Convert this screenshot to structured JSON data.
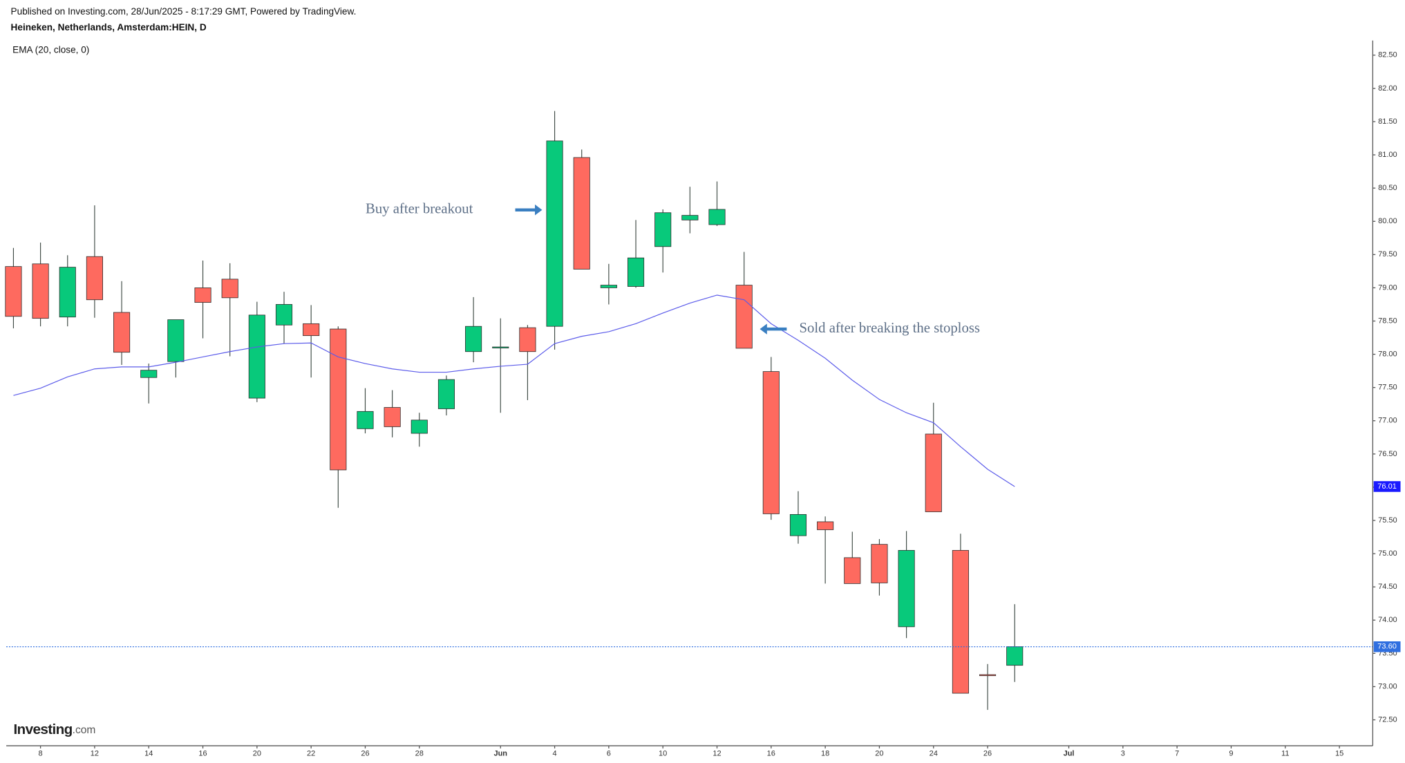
{
  "chart_data": {
    "type": "candlestick",
    "subtitle": "Published on Investing.com, 28/Jun/2025 - 8:17:29 GMT, Powered by TradingView.",
    "title": "Heineken, Netherlands, Amsterdam:HEIN, D",
    "logo": {
      "text": "Investing",
      "suffix": ".com"
    },
    "categories": [
      null,
      "8",
      null,
      "12",
      null,
      "14",
      null,
      "16",
      null,
      "20",
      null,
      "22",
      null,
      "26",
      null,
      "28",
      null,
      null,
      "Jun",
      null,
      "4",
      null,
      "6",
      null,
      "10",
      null,
      "12",
      null,
      "16",
      null,
      "18",
      null,
      "20",
      null,
      "24",
      null,
      "26",
      null,
      null,
      "Jul",
      null,
      "3",
      null,
      "7",
      null,
      "9",
      null,
      "11",
      null,
      "15"
    ],
    "open": [
      79.32,
      79.36,
      78.56,
      79.47,
      78.63,
      77.65,
      77.89,
      79.0,
      79.13,
      77.34,
      78.44,
      78.46,
      78.38,
      76.88,
      77.2,
      76.81,
      77.18,
      78.04,
      78.1,
      78.4,
      78.42,
      80.96,
      79.0,
      79.02,
      79.62,
      80.02,
      79.95,
      79.04,
      77.74,
      75.27,
      75.48,
      74.94,
      75.14,
      73.9,
      76.8,
      75.05,
      73.18,
      73.32,
      null,
      null,
      null,
      null,
      null,
      null,
      null,
      null,
      null,
      null,
      null,
      null
    ],
    "high": [
      79.6,
      79.68,
      79.49,
      80.24,
      79.1,
      77.86,
      78.52,
      79.41,
      79.37,
      78.79,
      78.94,
      78.74,
      78.42,
      77.49,
      77.46,
      77.12,
      77.68,
      78.86,
      78.54,
      78.44,
      81.66,
      81.08,
      79.36,
      80.02,
      80.18,
      80.52,
      80.6,
      79.54,
      77.96,
      75.94,
      75.56,
      75.33,
      75.22,
      75.34,
      77.27,
      75.3,
      73.34,
      74.24,
      null,
      null,
      null,
      null,
      null,
      null,
      null,
      null,
      null,
      null,
      null,
      null
    ],
    "low": [
      78.39,
      78.42,
      78.42,
      78.55,
      77.84,
      77.26,
      77.65,
      78.24,
      77.97,
      77.28,
      78.16,
      77.65,
      75.69,
      76.81,
      76.75,
      76.61,
      77.08,
      77.88,
      77.12,
      77.31,
      78.07,
      79.28,
      78.75,
      79.0,
      79.23,
      79.82,
      79.93,
      78.09,
      75.51,
      75.15,
      74.55,
      74.55,
      74.37,
      73.73,
      75.63,
      72.9,
      72.65,
      73.07,
      null,
      null,
      null,
      null,
      null,
      null,
      null,
      null,
      null,
      null,
      null,
      null
    ],
    "close": [
      78.57,
      78.54,
      79.31,
      78.82,
      78.03,
      77.76,
      78.52,
      78.78,
      78.85,
      78.59,
      78.75,
      78.28,
      76.26,
      77.14,
      76.91,
      77.01,
      77.62,
      78.42,
      78.11,
      78.04,
      81.21,
      79.28,
      79.04,
      79.45,
      80.13,
      80.09,
      80.18,
      78.09,
      75.6,
      75.59,
      75.36,
      74.55,
      74.56,
      75.05,
      75.63,
      72.9,
      73.17,
      73.6,
      null,
      null,
      null,
      null,
      null,
      null,
      null,
      null,
      null,
      null,
      null,
      null
    ],
    "up_color": "#08c97b",
    "down_color": "#fe6a5f",
    "series": [
      {
        "name": "EMA (20, close, 0)",
        "color": "#5b5bea",
        "values": [
          77.38,
          77.49,
          77.66,
          77.78,
          77.81,
          77.81,
          77.88,
          77.96,
          78.04,
          78.11,
          78.16,
          78.17,
          77.96,
          77.86,
          77.78,
          77.73,
          77.73,
          77.78,
          77.82,
          77.85,
          78.16,
          78.27,
          78.34,
          78.46,
          78.62,
          78.77,
          78.89,
          78.82,
          78.46,
          78.21,
          77.94,
          77.61,
          77.32,
          77.12,
          76.97,
          76.61,
          76.27,
          76.01,
          null,
          null,
          null,
          null,
          null,
          null,
          null,
          null,
          null,
          null,
          null,
          null
        ]
      }
    ],
    "price_tags": [
      {
        "value": 76.01,
        "label": "76.01",
        "color": "#1a1aff",
        "line": false
      },
      {
        "value": 73.6,
        "label": "73.60",
        "color": "#2f6fe0",
        "line": true
      }
    ],
    "annotations": [
      {
        "text": "Buy after breakout"
      },
      {
        "text": "Sold after breaking the stoploss"
      }
    ],
    "ylim": [
      72.11,
      82.72
    ],
    "yticks": [
      {
        "value": 72.5,
        "label": "72.50"
      },
      {
        "value": 73,
        "label": "73.00"
      },
      {
        "value": 73.5,
        "label": "73.50"
      },
      {
        "value": 74,
        "label": "74.00"
      },
      {
        "value": 74.5,
        "label": "74.50"
      },
      {
        "value": 75,
        "label": "75.00"
      },
      {
        "value": 75.5,
        "label": "75.50"
      },
      {
        "value": 76,
        "label": "76.00"
      },
      {
        "value": 76.5,
        "label": "76.50"
      },
      {
        "value": 77,
        "label": "77.00"
      },
      {
        "value": 77.5,
        "label": "77.50"
      },
      {
        "value": 78,
        "label": "78.00"
      },
      {
        "value": 78.5,
        "label": "78.50"
      },
      {
        "value": 79,
        "label": "79.00"
      },
      {
        "value": 79.5,
        "label": "79.50"
      },
      {
        "value": 80,
        "label": "80.00"
      },
      {
        "value": 80.5,
        "label": "80.50"
      },
      {
        "value": 81,
        "label": "81.00"
      },
      {
        "value": 81.5,
        "label": "81.50"
      },
      {
        "value": 82,
        "label": "82.00"
      },
      {
        "value": 82.5,
        "label": "82.50"
      }
    ],
    "grid": false
  }
}
